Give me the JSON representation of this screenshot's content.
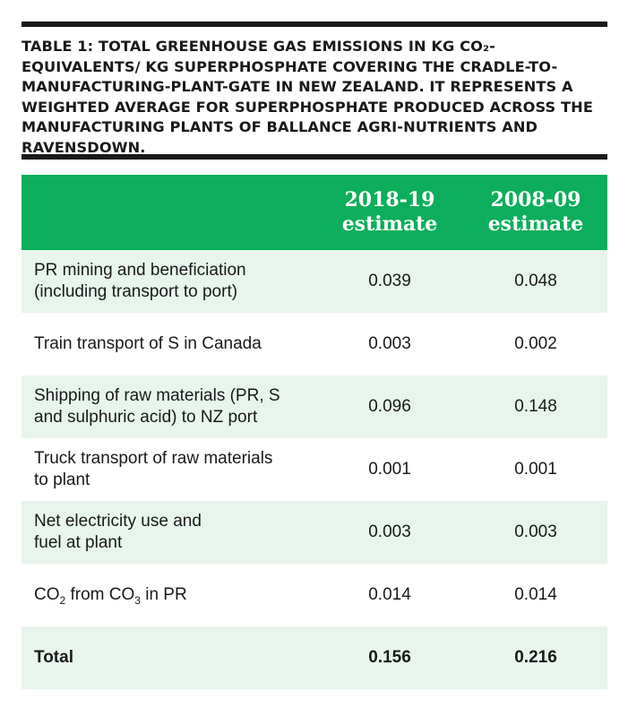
{
  "caption": "TABLE 1: TOTAL GREENHOUSE GAS EMISSIONS IN KG CO₂-EQUIVALENTS/ KG SUPERPHOSPHATE COVERING THE CRADLE-TO-MANUFACTURING-PLANT-GATE IN NEW ZEALAND. IT REPRESENTS A WEIGHTED AVERAGE FOR SUPERPHOSPHATE PRODUCED ACROSS THE MANUFACTURING PLANTS OF BALLANCE AGRI-NUTRIENTS AND RAVENSDOWN.",
  "table": {
    "columns": [
      {
        "line1": "2018-19",
        "line2": "estimate"
      },
      {
        "line1": "2008-09",
        "line2": "estimate"
      }
    ],
    "rows": [
      {
        "label_line1": "PR mining and beneficiation",
        "label_line2": "(including transport to port)",
        "v2018": "0.039",
        "v2008": "0.048"
      },
      {
        "label_line1": "Train transport of S in Canada",
        "label_line2": "",
        "v2018": "0.003",
        "v2008": "0.002"
      },
      {
        "label_line1": "Shipping of raw materials (PR, S",
        "label_line2": "and sulphuric acid) to NZ port",
        "v2018": "0.096",
        "v2008": "0.148"
      },
      {
        "label_line1": "Truck transport of raw materials",
        "label_line2": "to plant",
        "v2018": "0.001",
        "v2008": "0.001"
      },
      {
        "label_line1": "Net electricity use and",
        "label_line2": "fuel at plant",
        "v2018": "0.003",
        "v2008": "0.003"
      }
    ],
    "co2_row": {
      "part1": "CO",
      "sub1": "2",
      "part2": " from CO",
      "sub2": "3",
      "part3": " in PR",
      "v2018": "0.014",
      "v2008": "0.014"
    },
    "total_row": {
      "label": "Total",
      "v2018": "0.156",
      "v2008": "0.216"
    }
  },
  "colors": {
    "header_green": "#0cae5b",
    "row_tint": "#e7f5ec",
    "rule": "#1a1a1a"
  }
}
